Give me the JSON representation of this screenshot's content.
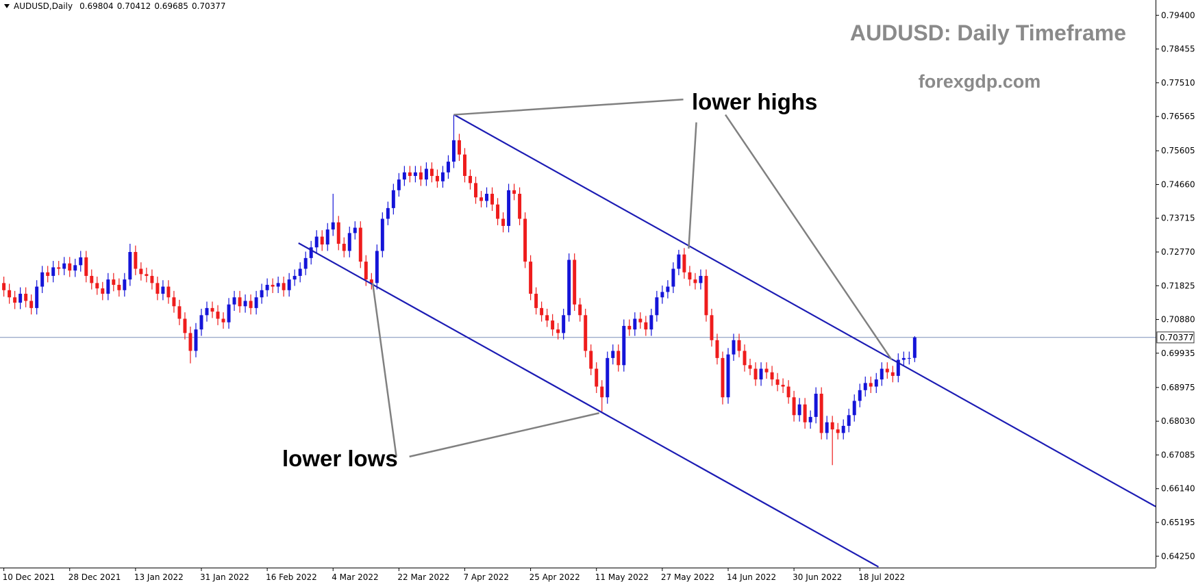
{
  "chart_data": {
    "type": "candlestick",
    "symbol": "AUDUSD,Daily",
    "title": "AUDUSD: Daily Timeframe",
    "subtitle": "forexgdp.com",
    "annotations": [
      "lower highs",
      "lower lows"
    ],
    "up_color": "#1414d8",
    "down_color": "#ee1c1c",
    "line_color": "#1c1cb4",
    "price_line_color": "#7a8fb8",
    "xlim": [
      -0.7,
      209.9
    ],
    "ylim": [
      0.63929,
      0.79828
    ],
    "xticks": [
      {
        "value": 0,
        "label": "10 Dec 2021"
      },
      {
        "value": 12,
        "label": "28 Dec 2021"
      },
      {
        "value": 24,
        "label": "13 Jan 2022"
      },
      {
        "value": 36,
        "label": "31 Jan 2022"
      },
      {
        "value": 48,
        "label": "16 Feb 2022"
      },
      {
        "value": 60,
        "label": "4 Mar 2022"
      },
      {
        "value": 72,
        "label": "22 Mar 2022"
      },
      {
        "value": 84,
        "label": "7 Apr 2022"
      },
      {
        "value": 96,
        "label": "25 Apr 2022"
      },
      {
        "value": 108,
        "label": "11 May 2022"
      },
      {
        "value": 120,
        "label": "27 May 2022"
      },
      {
        "value": 132,
        "label": "14 Jun 2022"
      },
      {
        "value": 144,
        "label": "30 Jun 2022"
      },
      {
        "value": 156,
        "label": "18 Jul 2022"
      }
    ],
    "yticks": [
      {
        "value": 0.794,
        "label": "0.79400"
      },
      {
        "value": 0.78455,
        "label": "0.78455"
      },
      {
        "value": 0.7751,
        "label": "0.77510"
      },
      {
        "value": 0.76565,
        "label": "0.76565"
      },
      {
        "value": 0.75605,
        "label": "0.75605"
      },
      {
        "value": 0.7466,
        "label": "0.74660"
      },
      {
        "value": 0.73715,
        "label": "0.73715"
      },
      {
        "value": 0.7277,
        "label": "0.72770"
      },
      {
        "value": 0.71825,
        "label": "0.71825"
      },
      {
        "value": 0.7088,
        "label": "0.70880"
      },
      {
        "value": 0.69935,
        "label": "0.69935"
      },
      {
        "value": 0.68975,
        "label": "0.68975"
      },
      {
        "value": 0.6803,
        "label": "0.68030"
      },
      {
        "value": 0.67085,
        "label": "0.67085"
      },
      {
        "value": 0.6614,
        "label": "0.66140"
      },
      {
        "value": 0.65195,
        "label": "0.65195"
      },
      {
        "value": 0.6425,
        "label": "0.64250"
      }
    ],
    "trendlines": [
      {
        "from": [
          82,
          0.7662
        ],
        "to": [
          209.9,
          0.6564
        ]
      },
      {
        "from": [
          53.7,
          0.7302
        ],
        "to": [
          159.4,
          0.6395
        ]
      }
    ],
    "open": [
      0.719,
      0.717,
      0.715,
      0.7135,
      0.716,
      0.714,
      0.712,
      0.718,
      0.722,
      0.721,
      0.7234,
      0.723,
      0.7245,
      0.7225,
      0.724,
      0.7262,
      0.721,
      0.719,
      0.7175,
      0.716,
      0.72,
      0.7185,
      0.717,
      0.72,
      0.7277,
      0.723,
      0.7215,
      0.721,
      0.719,
      0.716,
      0.718,
      0.715,
      0.7125,
      0.709,
      0.705,
      0.7,
      0.706,
      0.71,
      0.712,
      0.711,
      0.709,
      0.708,
      0.713,
      0.715,
      0.7125,
      0.714,
      0.712,
      0.715,
      0.717,
      0.7185,
      0.718,
      0.719,
      0.717,
      0.72,
      0.721,
      0.723,
      0.726,
      0.729,
      0.732,
      0.7298,
      0.734,
      0.736,
      0.73,
      0.728,
      0.733,
      0.7345,
      0.725,
      0.72,
      0.719,
      0.728,
      0.737,
      0.74,
      0.745,
      0.748,
      0.75,
      0.749,
      0.75,
      0.748,
      0.751,
      0.749,
      0.7475,
      0.75,
      0.753,
      0.759,
      0.755,
      0.749,
      0.747,
      0.743,
      0.742,
      0.744,
      0.741,
      0.737,
      0.735,
      0.745,
      0.744,
      0.737,
      0.725,
      0.716,
      0.712,
      0.71,
      0.7085,
      0.706,
      0.705,
      0.71,
      0.7255,
      0.713,
      0.71,
      0.7,
      0.695,
      0.69,
      0.687,
      0.698,
      0.7,
      0.696,
      0.707,
      0.706,
      0.709,
      0.708,
      0.706,
      0.71,
      0.715,
      0.7165,
      0.718,
      0.723,
      0.727,
      0.722,
      0.72,
      0.719,
      0.721,
      0.71,
      0.703,
      0.698,
      0.687,
      0.699,
      0.703,
      0.7,
      0.696,
      0.695,
      0.692,
      0.695,
      0.694,
      0.692,
      0.6905,
      0.69,
      0.687,
      0.682,
      0.685,
      0.68,
      0.6815,
      0.688,
      0.677,
      0.68,
      0.678,
      0.677,
      0.679,
      0.682,
      0.686,
      0.689,
      0.691,
      0.69,
      0.692,
      0.695,
      0.694,
      0.693,
      0.6975,
      0.698,
      0.69804
    ],
    "high": [
      0.7208,
      0.7188,
      0.7168,
      0.7178,
      0.7178,
      0.7158,
      0.7198,
      0.7238,
      0.7238,
      0.7252,
      0.7252,
      0.7263,
      0.7263,
      0.7258,
      0.728,
      0.728,
      0.7228,
      0.7208,
      0.7193,
      0.7218,
      0.7218,
      0.7203,
      0.7218,
      0.73,
      0.7295,
      0.7248,
      0.7233,
      0.7228,
      0.7208,
      0.7198,
      0.7198,
      0.7168,
      0.7143,
      0.7108,
      0.7068,
      0.7078,
      0.7118,
      0.7138,
      0.7138,
      0.7128,
      0.7108,
      0.7148,
      0.7168,
      0.7168,
      0.7158,
      0.7158,
      0.7168,
      0.7188,
      0.7203,
      0.7203,
      0.7208,
      0.7208,
      0.7218,
      0.7228,
      0.7248,
      0.7278,
      0.7308,
      0.7338,
      0.7338,
      0.7358,
      0.744,
      0.7378,
      0.7318,
      0.7348,
      0.7363,
      0.7363,
      0.7268,
      0.7218,
      0.7298,
      0.7388,
      0.7418,
      0.7468,
      0.7498,
      0.7518,
      0.7518,
      0.7518,
      0.7518,
      0.7528,
      0.7528,
      0.7508,
      0.7518,
      0.7548,
      0.7661,
      0.7608,
      0.7568,
      0.7508,
      0.7488,
      0.7448,
      0.7458,
      0.7458,
      0.7428,
      0.7388,
      0.7468,
      0.7468,
      0.7458,
      0.7388,
      0.7268,
      0.7178,
      0.7138,
      0.7118,
      0.7103,
      0.7078,
      0.7118,
      0.7273,
      0.7273,
      0.7148,
      0.7118,
      0.7018,
      0.6968,
      0.6918,
      0.6998,
      0.7018,
      0.7018,
      0.7088,
      0.7088,
      0.7108,
      0.7108,
      0.7098,
      0.7118,
      0.7168,
      0.7183,
      0.7198,
      0.7248,
      0.7283,
      0.7288,
      0.7238,
      0.7218,
      0.7228,
      0.7228,
      0.7118,
      0.7048,
      0.6998,
      0.7008,
      0.7048,
      0.7048,
      0.7018,
      0.6978,
      0.6968,
      0.6968,
      0.6968,
      0.6958,
      0.6938,
      0.6923,
      0.6918,
      0.6888,
      0.6868,
      0.6868,
      0.6833,
      0.6898,
      0.6898,
      0.6818,
      0.6818,
      0.6798,
      0.6808,
      0.6838,
      0.6878,
      0.6908,
      0.6928,
      0.6928,
      0.6938,
      0.6968,
      0.6968,
      0.6958,
      0.6993,
      0.6998,
      0.6998,
      0.70412
    ],
    "low": [
      0.7152,
      0.7132,
      0.7117,
      0.7117,
      0.7122,
      0.7102,
      0.7102,
      0.7162,
      0.7192,
      0.7192,
      0.7212,
      0.7212,
      0.7207,
      0.7207,
      0.7222,
      0.7192,
      0.7172,
      0.7157,
      0.7142,
      0.7142,
      0.7167,
      0.7152,
      0.7152,
      0.7182,
      0.7212,
      0.7197,
      0.7192,
      0.7172,
      0.7142,
      0.7142,
      0.7132,
      0.7107,
      0.7072,
      0.7032,
      0.6965,
      0.6982,
      0.7042,
      0.7082,
      0.7092,
      0.7072,
      0.7062,
      0.7062,
      0.7112,
      0.7107,
      0.7107,
      0.7102,
      0.7102,
      0.7132,
      0.7152,
      0.7162,
      0.7162,
      0.7152,
      0.7152,
      0.7182,
      0.7192,
      0.7212,
      0.7242,
      0.7272,
      0.728,
      0.728,
      0.7322,
      0.7282,
      0.7262,
      0.7262,
      0.7312,
      0.7232,
      0.7182,
      0.7172,
      0.7172,
      0.7262,
      0.7352,
      0.7382,
      0.7432,
      0.7462,
      0.7472,
      0.7472,
      0.7462,
      0.7462,
      0.7472,
      0.7457,
      0.7457,
      0.7482,
      0.7512,
      0.7532,
      0.7472,
      0.7452,
      0.7412,
      0.7402,
      0.7402,
      0.7392,
      0.7352,
      0.7332,
      0.7332,
      0.7422,
      0.7352,
      0.7232,
      0.7142,
      0.7102,
      0.7082,
      0.7067,
      0.7042,
      0.7032,
      0.7032,
      0.7082,
      0.7112,
      0.7082,
      0.6982,
      0.6932,
      0.6882,
      0.683,
      0.6852,
      0.6962,
      0.6942,
      0.6942,
      0.7042,
      0.7042,
      0.7062,
      0.7042,
      0.7042,
      0.7082,
      0.7132,
      0.7147,
      0.7162,
      0.7212,
      0.7202,
      0.7182,
      0.7172,
      0.7172,
      0.7082,
      0.7012,
      0.6962,
      0.685,
      0.6852,
      0.6972,
      0.6982,
      0.6942,
      0.6932,
      0.6902,
      0.6902,
      0.6922,
      0.6902,
      0.6887,
      0.6882,
      0.6852,
      0.6802,
      0.6802,
      0.6782,
      0.6782,
      0.6797,
      0.6752,
      0.6752,
      0.668,
      0.6752,
      0.6752,
      0.6772,
      0.6802,
      0.6842,
      0.6872,
      0.6882,
      0.6882,
      0.6902,
      0.6922,
      0.6912,
      0.6912,
      0.6957,
      0.6962,
      0.69685
    ],
    "close": [
      0.717,
      0.715,
      0.7135,
      0.716,
      0.714,
      0.712,
      0.718,
      0.722,
      0.721,
      0.7234,
      0.723,
      0.7245,
      0.7225,
      0.724,
      0.7262,
      0.721,
      0.719,
      0.7175,
      0.716,
      0.72,
      0.7185,
      0.717,
      0.72,
      0.7277,
      0.723,
      0.7215,
      0.721,
      0.719,
      0.716,
      0.718,
      0.715,
      0.7125,
      0.709,
      0.705,
      0.7,
      0.706,
      0.71,
      0.712,
      0.711,
      0.709,
      0.708,
      0.713,
      0.715,
      0.7125,
      0.714,
      0.712,
      0.715,
      0.717,
      0.7185,
      0.718,
      0.719,
      0.717,
      0.72,
      0.721,
      0.723,
      0.726,
      0.729,
      0.732,
      0.7298,
      0.734,
      0.736,
      0.73,
      0.728,
      0.733,
      0.7345,
      0.725,
      0.72,
      0.719,
      0.728,
      0.737,
      0.74,
      0.745,
      0.748,
      0.75,
      0.749,
      0.75,
      0.748,
      0.751,
      0.749,
      0.7475,
      0.75,
      0.753,
      0.759,
      0.755,
      0.749,
      0.747,
      0.743,
      0.742,
      0.744,
      0.741,
      0.737,
      0.735,
      0.745,
      0.744,
      0.737,
      0.725,
      0.716,
      0.712,
      0.71,
      0.7085,
      0.706,
      0.705,
      0.71,
      0.7255,
      0.713,
      0.71,
      0.7,
      0.695,
      0.69,
      0.687,
      0.698,
      0.7,
      0.696,
      0.707,
      0.706,
      0.709,
      0.708,
      0.706,
      0.71,
      0.715,
      0.7165,
      0.718,
      0.723,
      0.727,
      0.722,
      0.72,
      0.719,
      0.721,
      0.71,
      0.703,
      0.698,
      0.687,
      0.699,
      0.703,
      0.7,
      0.696,
      0.695,
      0.692,
      0.695,
      0.694,
      0.692,
      0.6905,
      0.69,
      0.687,
      0.682,
      0.685,
      0.68,
      0.6815,
      0.688,
      0.677,
      0.68,
      0.678,
      0.677,
      0.679,
      0.682,
      0.686,
      0.689,
      0.691,
      0.69,
      0.692,
      0.695,
      0.694,
      0.693,
      0.6975,
      0.698,
      0.698,
      0.70377
    ]
  }
}
